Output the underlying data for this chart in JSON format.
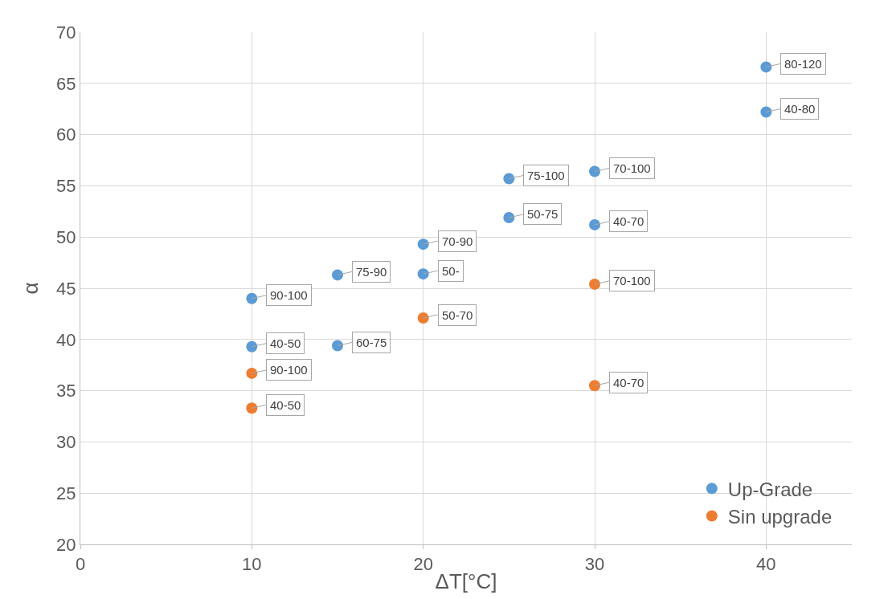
{
  "chart_data": {
    "type": "scatter",
    "xlabel": "ΔT[°C]",
    "ylabel": "α",
    "xlim": [
      0,
      45
    ],
    "xticks": [
      0,
      10,
      20,
      30,
      40
    ],
    "ylim": [
      20,
      70
    ],
    "yticks": [
      20,
      25,
      30,
      35,
      40,
      45,
      50,
      55,
      60,
      65,
      70
    ],
    "grid": true,
    "legend": "bottom right",
    "marker": "circle",
    "series": [
      {
        "name": "Up-Grade",
        "color": "#5b9bd5",
        "x": [
          10,
          10,
          15,
          15,
          20,
          20,
          25,
          25,
          30,
          30,
          40,
          40
        ],
        "values": [
          44.0,
          39.3,
          46.3,
          39.4,
          49.3,
          46.4,
          55.7,
          51.9,
          56.4,
          51.2,
          66.6,
          62.2
        ]
      },
      {
        "name": "Sin upgrade",
        "color": "#ed7d31",
        "x": [
          10,
          10,
          20,
          30,
          30
        ],
        "values": [
          36.7,
          33.3,
          42.1,
          45.4,
          35.5
        ]
      }
    ],
    "annotations": [
      {
        "text": "90-100",
        "x": 10,
        "y": 44.0
      },
      {
        "text": "40-50",
        "x": 10,
        "y": 39.3
      },
      {
        "text": "75-90",
        "x": 15,
        "y": 46.3
      },
      {
        "text": "60-75",
        "x": 15,
        "y": 39.4
      },
      {
        "text": "70-90",
        "x": 20,
        "y": 49.3
      },
      {
        "text": "50-",
        "x": 20,
        "y": 46.4
      },
      {
        "text": "75-100",
        "x": 25,
        "y": 55.7
      },
      {
        "text": "50-75",
        "x": 25,
        "y": 51.9
      },
      {
        "text": "70-100",
        "x": 30,
        "y": 56.4
      },
      {
        "text": "40-70",
        "x": 30,
        "y": 51.2
      },
      {
        "text": "80-120",
        "x": 40,
        "y": 66.6
      },
      {
        "text": "40-80",
        "x": 40,
        "y": 62.2
      },
      {
        "text": "90-100",
        "x": 10,
        "y": 36.7
      },
      {
        "text": "40-50",
        "x": 10,
        "y": 33.3
      },
      {
        "text": "50-70",
        "x": 20,
        "y": 42.1
      },
      {
        "text": "70-100",
        "x": 30,
        "y": 45.4
      },
      {
        "text": "40-70",
        "x": 30,
        "y": 35.5
      }
    ]
  }
}
